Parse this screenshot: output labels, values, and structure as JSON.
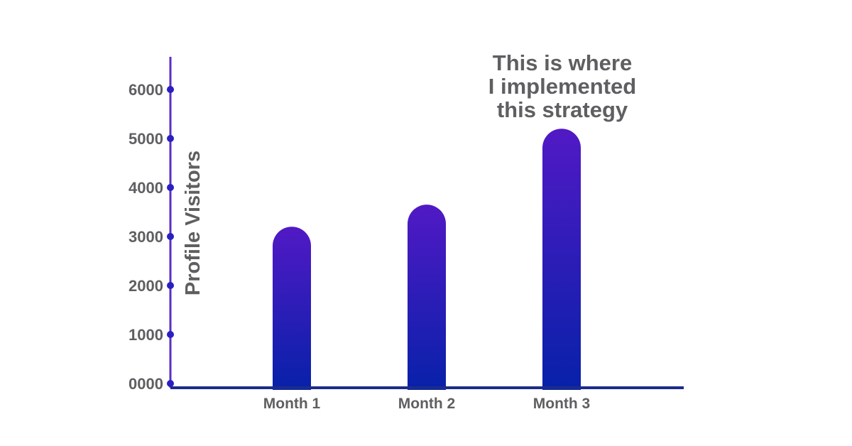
{
  "chart_data": {
    "type": "bar",
    "title": "",
    "xlabel": "",
    "ylabel": "Profile Visitors",
    "categories": [
      "Month 1",
      "Month 2",
      "Month 3"
    ],
    "values": [
      3200,
      3650,
      5200
    ],
    "ylim": [
      0,
      6000
    ],
    "yticks": [
      0,
      1000,
      2000,
      3000,
      4000,
      5000,
      6000
    ],
    "ytick_labels": [
      "0000",
      "1000",
      "2000",
      "3000",
      "4000",
      "5000",
      "6000"
    ],
    "grid": false,
    "legend": "none",
    "annotation": {
      "lines": [
        "This is where",
        "I implemented",
        "this strategy"
      ],
      "target_category": "Month 3"
    },
    "colors": {
      "bar_top": "#5119c5",
      "bar_bottom": "#0721a9",
      "axis_y": "#5a2fc4",
      "axis_x": "#1c2b8a",
      "tick_dot": "#2a1fc0",
      "text": "#5f5f62"
    }
  }
}
